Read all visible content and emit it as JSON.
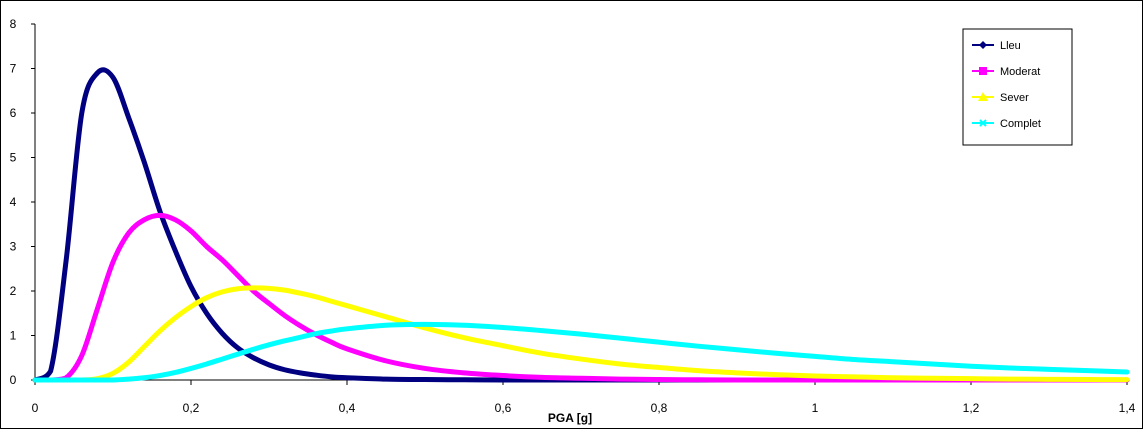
{
  "chart_data": {
    "type": "line",
    "title": "",
    "xlabel": "PGA [g]",
    "ylabel": "",
    "xlim": [
      0,
      1.4
    ],
    "ylim": [
      0,
      8
    ],
    "x_ticks": [
      "0",
      "0,2",
      "0,4",
      "0,6",
      "0,8",
      "1",
      "1,2",
      "1,4"
    ],
    "y_ticks": [
      "0",
      "1",
      "2",
      "3",
      "4",
      "5",
      "6",
      "7",
      "8"
    ],
    "grid": false,
    "legend_position": "top-right",
    "x": [
      0,
      0.02,
      0.04,
      0.06,
      0.08,
      0.1,
      0.12,
      0.14,
      0.16,
      0.18,
      0.2,
      0.22,
      0.24,
      0.26,
      0.28,
      0.3,
      0.32,
      0.34,
      0.36,
      0.38,
      0.4,
      0.45,
      0.5,
      0.55,
      0.6,
      0.65,
      0.7,
      0.75,
      0.8,
      0.85,
      0.9,
      0.95,
      1.0,
      1.05,
      1.1,
      1.15,
      1.2,
      1.25,
      1.3,
      1.35,
      1.4
    ],
    "series": [
      {
        "name": "Lleu",
        "color": "#000080",
        "marker": "diamond",
        "values": [
          0,
          0.2,
          2.7,
          6.0,
          6.9,
          6.8,
          5.9,
          4.9,
          3.8,
          2.9,
          2.1,
          1.5,
          1.05,
          0.72,
          0.5,
          0.34,
          0.23,
          0.16,
          0.11,
          0.07,
          0.05,
          0.02,
          0.01,
          0.005,
          0,
          0,
          0,
          0,
          0,
          0,
          0,
          0,
          0,
          0,
          0,
          0,
          0,
          0,
          0,
          0,
          0
        ]
      },
      {
        "name": "Moderat",
        "color": "#FF00FF",
        "marker": "square",
        "values": [
          0,
          0,
          0.05,
          0.55,
          1.6,
          2.65,
          3.3,
          3.6,
          3.7,
          3.6,
          3.35,
          3.0,
          2.7,
          2.35,
          2.0,
          1.72,
          1.45,
          1.22,
          1.02,
          0.85,
          0.7,
          0.43,
          0.26,
          0.16,
          0.1,
          0.06,
          0.04,
          0.02,
          0.01,
          0.005,
          0,
          0,
          0,
          0,
          0,
          0,
          0,
          0,
          0,
          0,
          0
        ]
      },
      {
        "name": "Sever",
        "color": "#FFFF00",
        "marker": "triangle",
        "values": [
          0,
          0,
          0,
          0,
          0.03,
          0.15,
          0.4,
          0.75,
          1.1,
          1.4,
          1.65,
          1.85,
          1.98,
          2.05,
          2.07,
          2.06,
          2.02,
          1.95,
          1.87,
          1.77,
          1.67,
          1.42,
          1.17,
          0.95,
          0.77,
          0.6,
          0.47,
          0.36,
          0.28,
          0.21,
          0.16,
          0.12,
          0.09,
          0.07,
          0.05,
          0.04,
          0.03,
          0.02,
          0.015,
          0.01,
          0.008
        ]
      },
      {
        "name": "Complet",
        "color": "#00FFFF",
        "marker": "x",
        "values": [
          0,
          0,
          0,
          0,
          0,
          0,
          0.02,
          0.05,
          0.1,
          0.17,
          0.26,
          0.36,
          0.47,
          0.58,
          0.69,
          0.79,
          0.88,
          0.96,
          1.04,
          1.1,
          1.15,
          1.23,
          1.25,
          1.23,
          1.18,
          1.11,
          1.03,
          0.94,
          0.85,
          0.76,
          0.68,
          0.6,
          0.53,
          0.46,
          0.41,
          0.36,
          0.31,
          0.27,
          0.24,
          0.21,
          0.18
        ]
      }
    ]
  }
}
